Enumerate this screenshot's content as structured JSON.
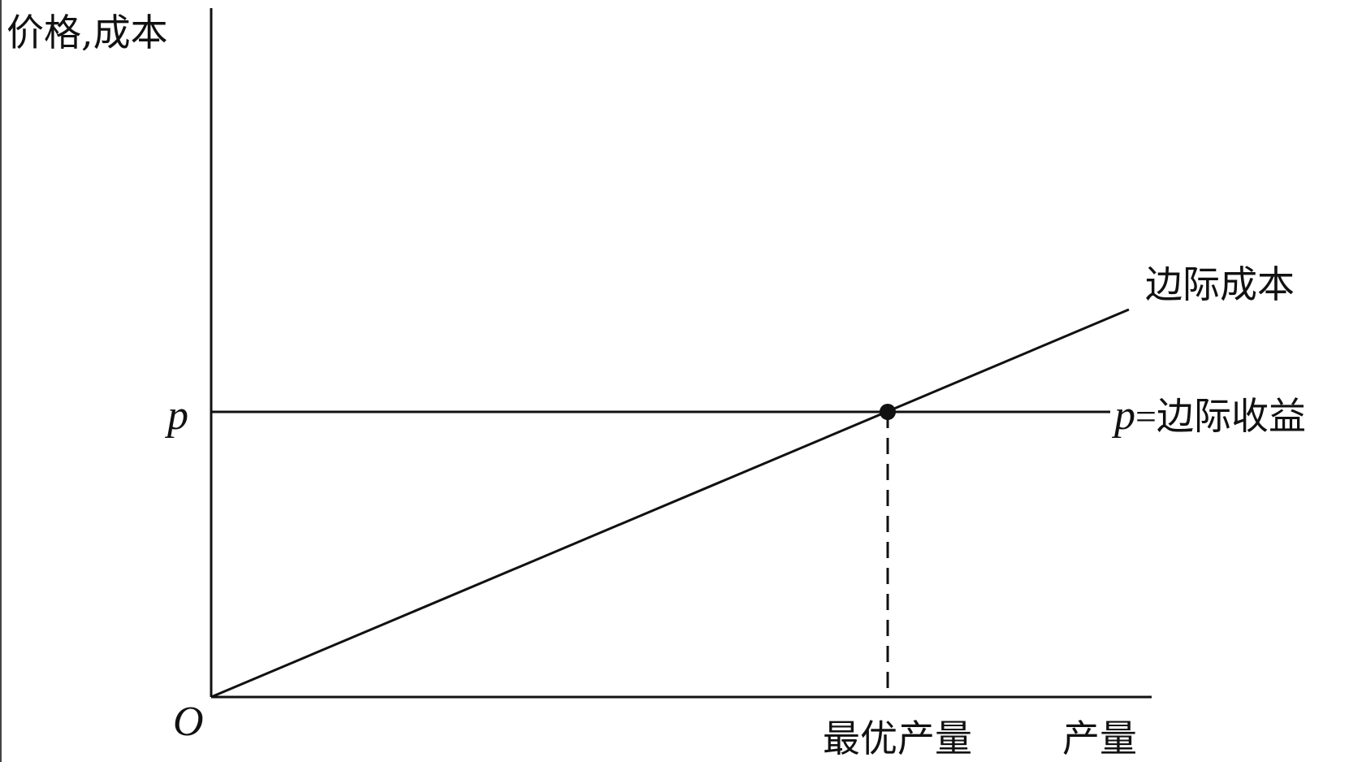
{
  "axes": {
    "y_label": "价格,成本",
    "x_label": "产量",
    "origin_label": "O"
  },
  "price": {
    "tick_label": "p",
    "line_label_var": "p",
    "line_label_eq": "=",
    "line_label_text": "边际收益"
  },
  "marginal_cost": {
    "label": "边际成本"
  },
  "optimum": {
    "label": "最优产量"
  },
  "colors": {
    "ink": "#111111",
    "background": "#ffffff"
  }
}
